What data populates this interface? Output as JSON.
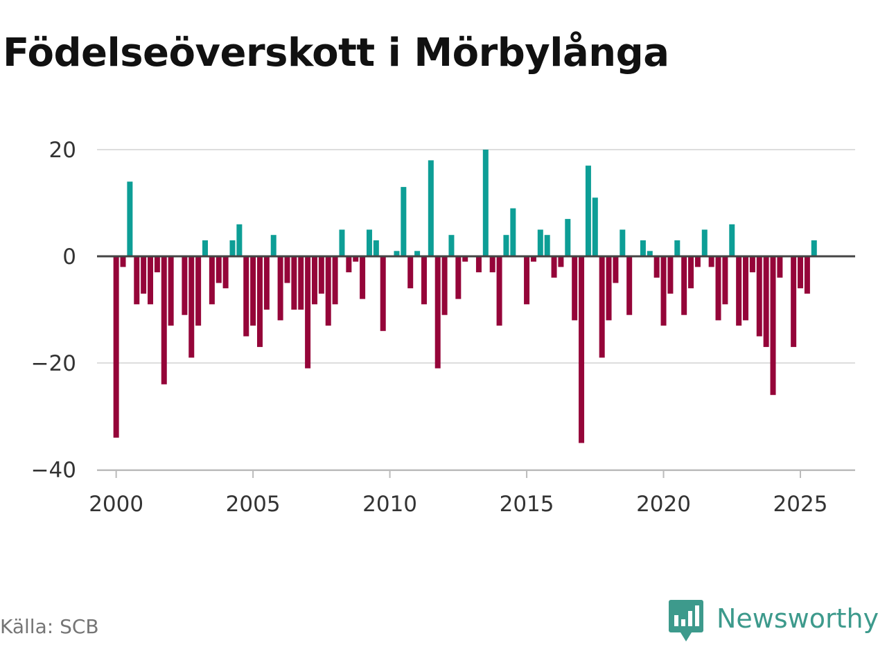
{
  "title": "Födelseöverskott i Mörbylånga",
  "source": "Källa: SCB",
  "brand": {
    "name": "Newsworthy",
    "logo_icon": "newsworthy-logo-icon",
    "color": "#3d9a8c"
  },
  "colors": {
    "positive": "#0d9e96",
    "negative": "#950539",
    "zero_line": "#444444",
    "grid": "#dddddd",
    "axis": "#bbbbbb"
  },
  "chart_data": {
    "type": "bar",
    "title": "Födelseöverskott i Mörbylånga",
    "xlabel": "",
    "ylabel": "",
    "grid": true,
    "legend": "none",
    "x_start": 2000.0,
    "x_step": 0.25,
    "xlim": [
      1999.3,
      2027.0
    ],
    "ylim": [
      -40,
      20
    ],
    "x_ticks": [
      2000,
      2005,
      2010,
      2015,
      2020,
      2025
    ],
    "y_ticks": [
      20,
      0,
      -20,
      -40
    ],
    "y_tick_labels": [
      "20",
      "0",
      "−20",
      "−40"
    ],
    "values": [
      -34,
      -2,
      14,
      -9,
      -7,
      -9,
      -3,
      -24,
      -13,
      0,
      -11,
      -19,
      -13,
      3,
      -9,
      -5,
      -6,
      3,
      6,
      -15,
      -13,
      -17,
      -10,
      4,
      -12,
      -5,
      -10,
      -10,
      -21,
      -9,
      -7,
      -13,
      -9,
      5,
      -3,
      -1,
      -8,
      5,
      3,
      -14,
      0,
      1,
      13,
      -6,
      1,
      -9,
      18,
      -21,
      -11,
      4,
      -8,
      -1,
      0,
      -3,
      20,
      -3,
      -13,
      4,
      9,
      0,
      -9,
      -1,
      5,
      4,
      -4,
      -2,
      7,
      -12,
      -35,
      17,
      11,
      -19,
      -12,
      -5,
      5,
      -11,
      0,
      3,
      1,
      -4,
      -13,
      -7,
      3,
      -11,
      -6,
      -2,
      5,
      -2,
      -12,
      -9,
      6,
      -13,
      -12,
      -3,
      -15,
      -17,
      -26,
      -4,
      0,
      -17,
      -6,
      -7,
      3
    ]
  }
}
